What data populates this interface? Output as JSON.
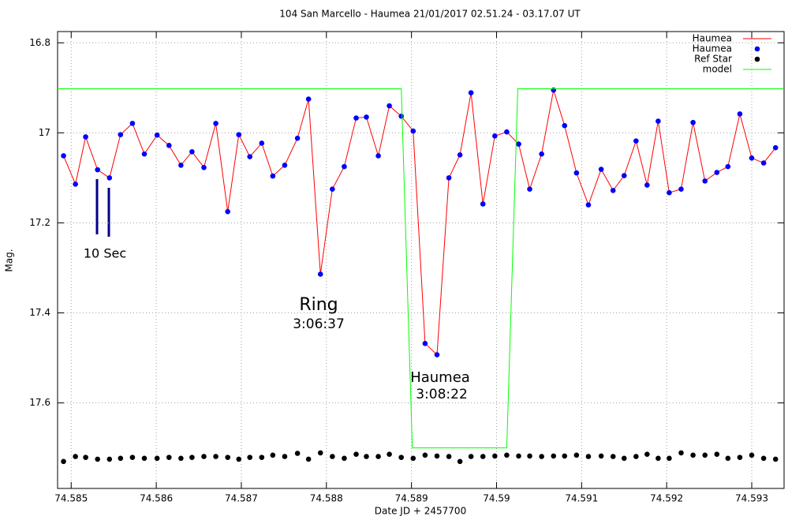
{
  "chart_data": {
    "type": "line",
    "title": "104 San Marcello - Haumea 21/01/2017  02.51.24 - 03.17.07 UT",
    "x_label": "Date JD + 2457700",
    "y_label": "Mag.",
    "xlim": [
      74.58484,
      74.59338
    ],
    "ylim": [
      16.775,
      17.79
    ],
    "y_reversed": true,
    "xticks": [
      74.585,
      74.586,
      74.587,
      74.588,
      74.589,
      74.59,
      74.591,
      74.592,
      74.593
    ],
    "yticks": [
      16.8,
      17,
      17.2,
      17.4,
      17.6
    ],
    "grid": true,
    "legend": "upper right",
    "annotations": [
      "10 Sec",
      "Ring",
      "3:06:37",
      "Haumea",
      "3:08:22"
    ],
    "series": [
      {
        "name": "Haumea",
        "style": "line",
        "color": "#ff0000",
        "x": [
          74.58491,
          74.58505,
          74.58517,
          74.58531,
          74.58545,
          74.58558,
          74.58572,
          74.58586,
          74.58601,
          74.58615,
          74.58629,
          74.58642,
          74.58656,
          74.5867,
          74.58684,
          74.58697,
          74.5871,
          74.58724,
          74.58737,
          74.58751,
          74.58766,
          74.58779,
          74.58793,
          74.58807,
          74.58821,
          74.58835,
          74.58847,
          74.58861,
          74.58874,
          74.58888,
          74.58902,
          74.58916,
          74.5893,
          74.58944,
          74.58957,
          74.5897,
          74.58984,
          74.58998,
          74.59012,
          74.59026,
          74.59039,
          74.59053,
          74.59067,
          74.5908,
          74.59094,
          74.59108,
          74.59123,
          74.59137,
          74.5915,
          74.59164,
          74.59177,
          74.5919,
          74.59203,
          74.59217,
          74.59231,
          74.59245,
          74.59259,
          74.59272,
          74.59286,
          74.593,
          74.59314,
          74.59328
        ],
        "values": [
          17.051,
          17.114,
          17.009,
          17.082,
          17.1,
          17.004,
          16.979,
          17.047,
          17.005,
          17.028,
          17.072,
          17.042,
          17.077,
          16.979,
          17.175,
          17.004,
          17.053,
          17.023,
          17.096,
          17.072,
          17.012,
          16.925,
          17.314,
          17.125,
          17.075,
          16.967,
          16.965,
          17.051,
          16.94,
          16.963,
          16.996,
          17.468,
          17.493,
          17.1,
          17.049,
          16.911,
          17.158,
          17.007,
          16.998,
          17.025,
          17.125,
          17.047,
          16.905,
          16.984,
          17.089,
          17.16,
          17.081,
          17.128,
          17.095,
          17.018,
          17.116,
          16.974,
          17.133,
          17.125,
          16.977,
          17.107,
          17.088,
          17.075,
          16.958,
          17.056,
          17.067,
          17.033
        ]
      },
      {
        "name": "Haumea",
        "style": "points",
        "color": "#0000ff",
        "x": [
          74.58491,
          74.58505,
          74.58517,
          74.58531,
          74.58545,
          74.58558,
          74.58572,
          74.58586,
          74.58601,
          74.58615,
          74.58629,
          74.58642,
          74.58656,
          74.5867,
          74.58684,
          74.58697,
          74.5871,
          74.58724,
          74.58737,
          74.58751,
          74.58766,
          74.58779,
          74.58793,
          74.58807,
          74.58821,
          74.58835,
          74.58847,
          74.58861,
          74.58874,
          74.58888,
          74.58902,
          74.58916,
          74.5893,
          74.58944,
          74.58957,
          74.5897,
          74.58984,
          74.58998,
          74.59012,
          74.59026,
          74.59039,
          74.59053,
          74.59067,
          74.5908,
          74.59094,
          74.59108,
          74.59123,
          74.59137,
          74.5915,
          74.59164,
          74.59177,
          74.5919,
          74.59203,
          74.59217,
          74.59231,
          74.59245,
          74.59259,
          74.59272,
          74.59286,
          74.593,
          74.59314,
          74.59328
        ],
        "values": [
          17.051,
          17.114,
          17.009,
          17.082,
          17.1,
          17.004,
          16.979,
          17.047,
          17.005,
          17.028,
          17.072,
          17.042,
          17.077,
          16.979,
          17.175,
          17.004,
          17.053,
          17.023,
          17.096,
          17.072,
          17.012,
          16.925,
          17.314,
          17.125,
          17.075,
          16.967,
          16.965,
          17.051,
          16.94,
          16.963,
          16.996,
          17.468,
          17.493,
          17.1,
          17.049,
          16.911,
          17.158,
          17.007,
          16.998,
          17.025,
          17.125,
          17.047,
          16.905,
          16.984,
          17.089,
          17.16,
          17.081,
          17.128,
          17.095,
          17.018,
          17.116,
          16.974,
          17.133,
          17.125,
          16.977,
          17.107,
          17.088,
          17.075,
          16.958,
          17.056,
          17.067,
          17.033
        ]
      },
      {
        "name": "Ref Star",
        "style": "points",
        "color": "#000000",
        "x": [
          74.58491,
          74.58505,
          74.58517,
          74.58531,
          74.58545,
          74.58558,
          74.58572,
          74.58586,
          74.58601,
          74.58615,
          74.58629,
          74.58642,
          74.58656,
          74.5867,
          74.58684,
          74.58697,
          74.5871,
          74.58724,
          74.58737,
          74.58751,
          74.58766,
          74.58779,
          74.58793,
          74.58807,
          74.58821,
          74.58835,
          74.58847,
          74.58861,
          74.58874,
          74.58888,
          74.58902,
          74.58916,
          74.5893,
          74.58944,
          74.58957,
          74.5897,
          74.58984,
          74.58998,
          74.59012,
          74.59026,
          74.59039,
          74.59053,
          74.59067,
          74.5908,
          74.59094,
          74.59108,
          74.59123,
          74.59137,
          74.5915,
          74.59164,
          74.59177,
          74.5919,
          74.59203,
          74.59217,
          74.59231,
          74.59245,
          74.59259,
          74.59272,
          74.59286,
          74.593,
          74.59314,
          74.59328
        ],
        "values": [
          17.73,
          17.719,
          17.721,
          17.725,
          17.725,
          17.723,
          17.721,
          17.723,
          17.723,
          17.721,
          17.723,
          17.721,
          17.719,
          17.719,
          17.721,
          17.725,
          17.721,
          17.721,
          17.716,
          17.719,
          17.712,
          17.725,
          17.711,
          17.719,
          17.723,
          17.714,
          17.719,
          17.719,
          17.714,
          17.721,
          17.723,
          17.716,
          17.718,
          17.719,
          17.73,
          17.719,
          17.719,
          17.718,
          17.716,
          17.718,
          17.718,
          17.719,
          17.718,
          17.718,
          17.716,
          17.719,
          17.718,
          17.719,
          17.723,
          17.719,
          17.714,
          17.723,
          17.723,
          17.711,
          17.716,
          17.716,
          17.714,
          17.723,
          17.721,
          17.716,
          17.723,
          17.725
        ]
      },
      {
        "name": "model",
        "style": "line",
        "color": "#00ff00",
        "x": [
          74.58484,
          74.58888,
          74.58901,
          74.59012,
          74.59025,
          74.59338
        ],
        "values": [
          16.902,
          16.902,
          17.7,
          17.7,
          16.902,
          16.902
        ]
      }
    ]
  }
}
